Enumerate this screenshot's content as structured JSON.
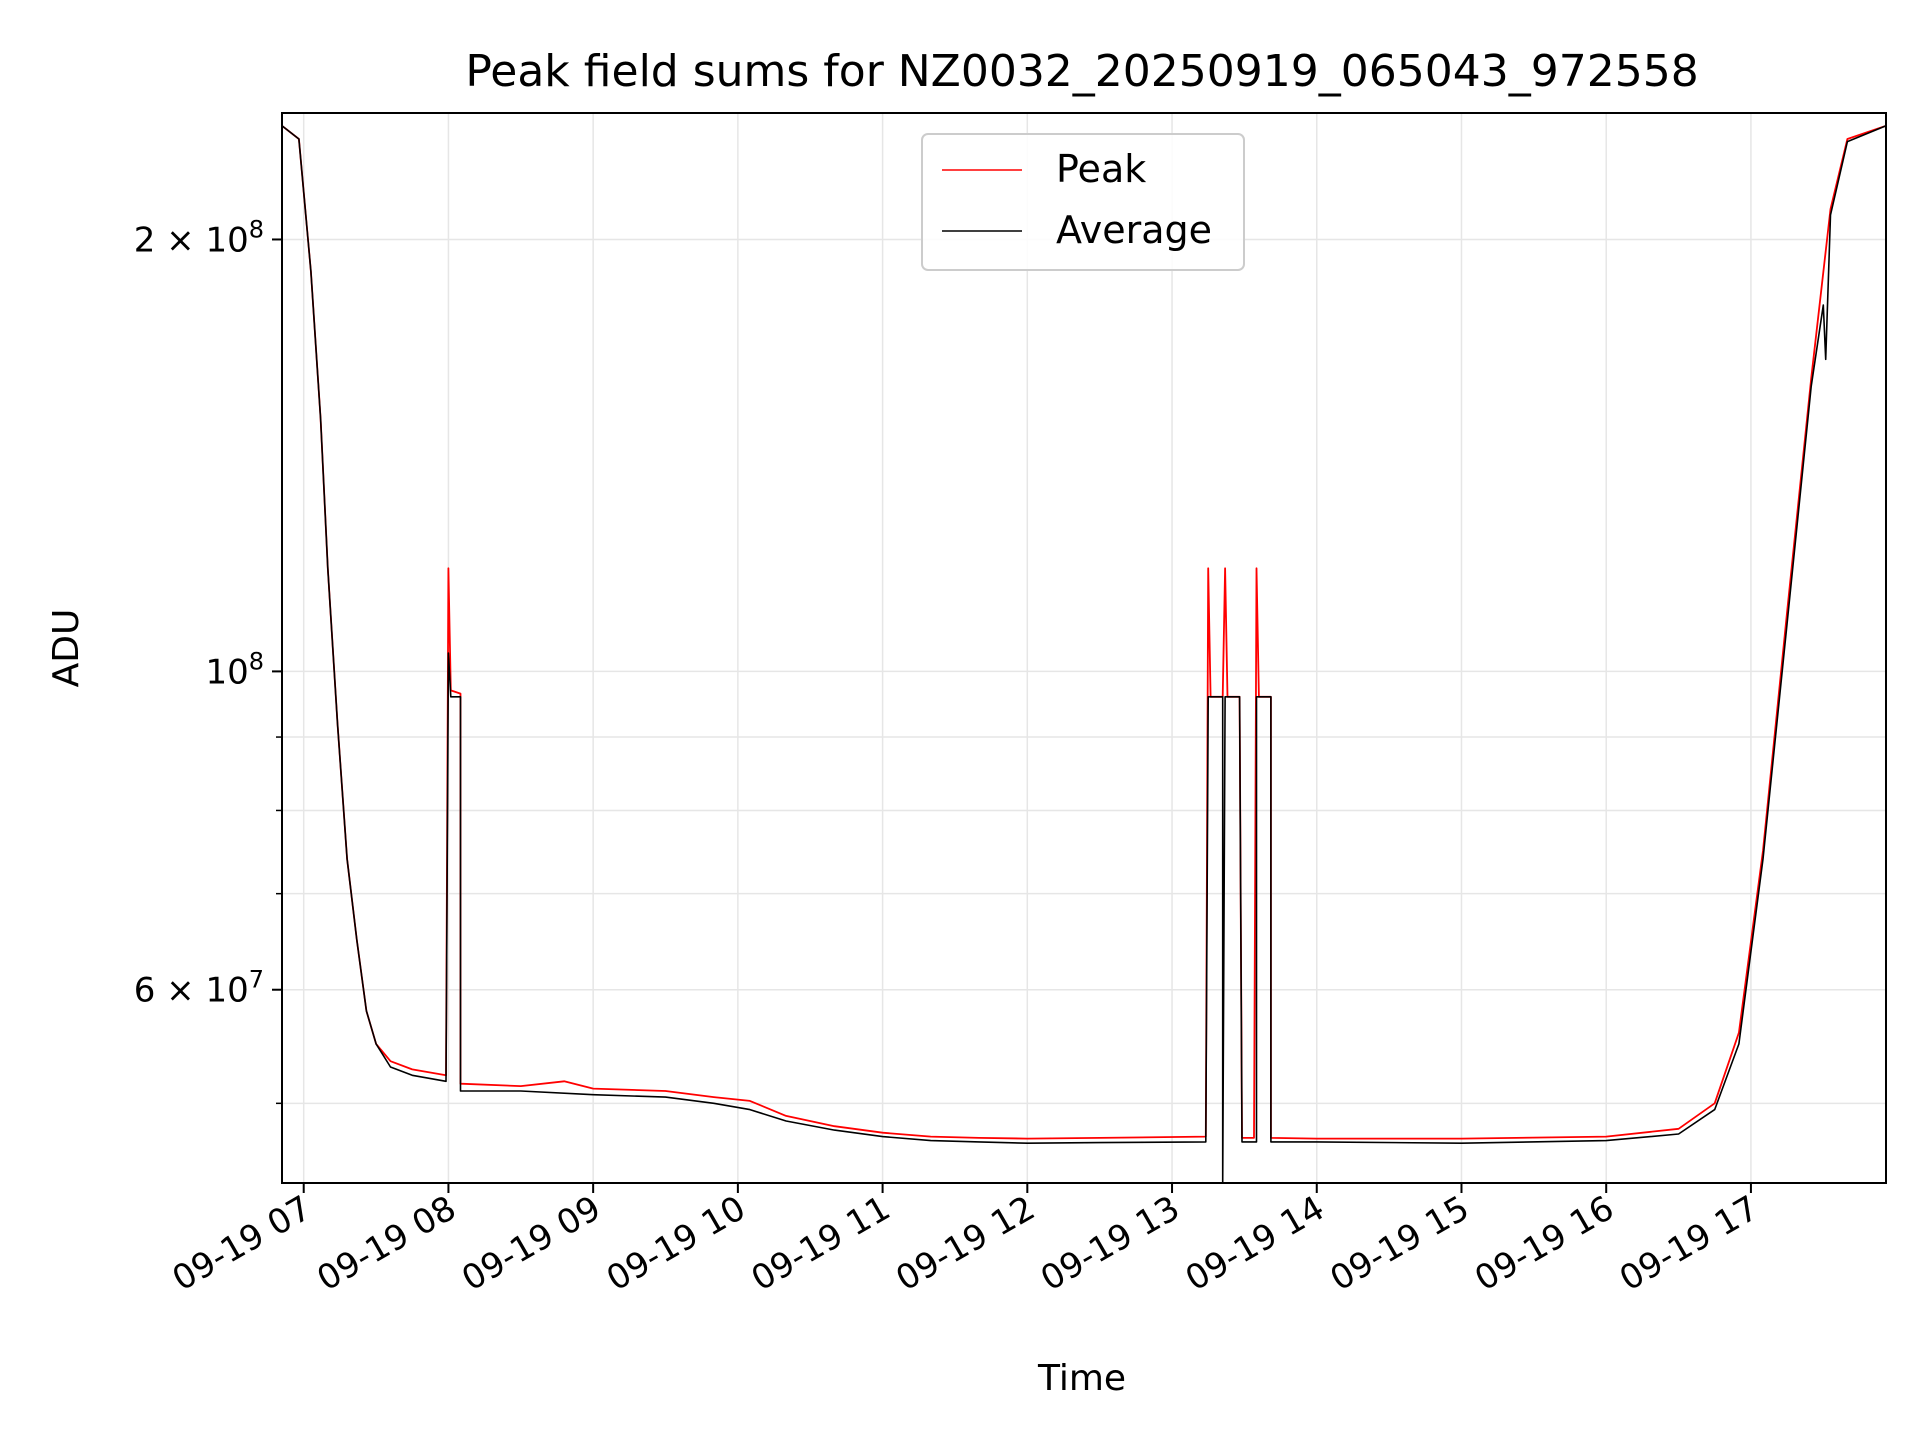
{
  "chart_data": {
    "type": "line",
    "title": "Peak field sums for NZ0032_20250919_065043_972558",
    "xlabel": "Time",
    "ylabel": "ADU",
    "yscale": "log",
    "ylim": [
      44000000,
      245000000
    ],
    "xlim": [
      "2025-09-19 06:51",
      "2025-09-19 17:56"
    ],
    "grid": true,
    "legend": "upper center",
    "x_ticks": [
      {
        "t": "2025-09-19 07:00",
        "label": "09-19 07"
      },
      {
        "t": "2025-09-19 08:00",
        "label": "09-19 08"
      },
      {
        "t": "2025-09-19 09:00",
        "label": "09-19 09"
      },
      {
        "t": "2025-09-19 10:00",
        "label": "09-19 10"
      },
      {
        "t": "2025-09-19 11:00",
        "label": "09-19 11"
      },
      {
        "t": "2025-09-19 12:00",
        "label": "09-19 12"
      },
      {
        "t": "2025-09-19 13:00",
        "label": "09-19 13"
      },
      {
        "t": "2025-09-19 14:00",
        "label": "09-19 14"
      },
      {
        "t": "2025-09-19 15:00",
        "label": "09-19 15"
      },
      {
        "t": "2025-09-19 16:00",
        "label": "09-19 16"
      },
      {
        "t": "2025-09-19 17:00",
        "label": "09-19 17"
      }
    ],
    "y_major_ticks": [
      {
        "value": 200000000,
        "mant": "2",
        "exp": "8"
      },
      {
        "value": 100000000,
        "mant": "",
        "exp": "8"
      },
      {
        "value": 60000000,
        "mant": "6",
        "exp": "7"
      }
    ],
    "y_minor_ticks": [
      50000000,
      70000000,
      80000000,
      90000000
    ],
    "series": [
      {
        "name": "Peak",
        "color": "#ff0000",
        "points": [
          [
            "2025-09-19 06:51",
            240000000
          ],
          [
            "2025-09-19 06:58",
            235000000
          ],
          [
            "2025-09-19 07:03",
            190000000
          ],
          [
            "2025-09-19 07:07",
            150000000
          ],
          [
            "2025-09-19 07:10",
            118000000
          ],
          [
            "2025-09-19 07:14",
            92000000
          ],
          [
            "2025-09-19 07:18",
            74000000
          ],
          [
            "2025-09-19 07:22",
            65000000
          ],
          [
            "2025-09-19 07:26",
            58000000
          ],
          [
            "2025-09-19 07:30",
            55000000
          ],
          [
            "2025-09-19 07:36",
            53500000
          ],
          [
            "2025-09-19 07:45",
            52800000
          ],
          [
            "2025-09-19 07:59",
            52300000
          ],
          [
            "2025-09-19 08:00",
            118000000
          ],
          [
            "2025-09-19 08:01",
            97000000
          ],
          [
            "2025-09-19 08:05",
            96500000
          ],
          [
            "2025-09-19 08:05",
            51600000
          ],
          [
            "2025-09-19 08:30",
            51400000
          ],
          [
            "2025-09-19 08:48",
            51800000
          ],
          [
            "2025-09-19 09:00",
            51200000
          ],
          [
            "2025-09-19 09:30",
            51000000
          ],
          [
            "2025-09-19 09:50",
            50500000
          ],
          [
            "2025-09-19 10:05",
            50200000
          ],
          [
            "2025-09-19 10:20",
            49000000
          ],
          [
            "2025-09-19 10:40",
            48200000
          ],
          [
            "2025-09-19 11:00",
            47700000
          ],
          [
            "2025-09-19 11:20",
            47400000
          ],
          [
            "2025-09-19 11:40",
            47300000
          ],
          [
            "2025-09-19 12:00",
            47250000
          ],
          [
            "2025-09-19 12:30",
            47300000
          ],
          [
            "2025-09-19 13:14",
            47400000
          ],
          [
            "2025-09-19 13:15",
            118000000
          ],
          [
            "2025-09-19 13:16",
            96000000
          ],
          [
            "2025-09-19 13:21",
            96000000
          ],
          [
            "2025-09-19 13:22",
            118000000
          ],
          [
            "2025-09-19 13:23",
            96000000
          ],
          [
            "2025-09-19 13:28",
            96000000
          ],
          [
            "2025-09-19 13:29",
            47300000
          ],
          [
            "2025-09-19 13:34",
            47300000
          ],
          [
            "2025-09-19 13:35",
            118000000
          ],
          [
            "2025-09-19 13:36",
            96000000
          ],
          [
            "2025-09-19 13:41",
            96000000
          ],
          [
            "2025-09-19 13:41",
            47300000
          ],
          [
            "2025-09-19 14:00",
            47250000
          ],
          [
            "2025-09-19 15:00",
            47250000
          ],
          [
            "2025-09-19 16:00",
            47400000
          ],
          [
            "2025-09-19 16:30",
            48000000
          ],
          [
            "2025-09-19 16:45",
            50000000
          ],
          [
            "2025-09-19 16:55",
            56000000
          ],
          [
            "2025-09-19 17:05",
            75000000
          ],
          [
            "2025-09-19 17:15",
            110000000
          ],
          [
            "2025-09-19 17:25",
            160000000
          ],
          [
            "2025-09-19 17:33",
            210000000
          ],
          [
            "2025-09-19 17:40",
            235000000
          ],
          [
            "2025-09-19 17:56",
            240000000
          ]
        ]
      },
      {
        "name": "Average",
        "color": "#000000",
        "points": [
          [
            "2025-09-19 06:51",
            240000000
          ],
          [
            "2025-09-19 06:58",
            235000000
          ],
          [
            "2025-09-19 07:03",
            190000000
          ],
          [
            "2025-09-19 07:07",
            150000000
          ],
          [
            "2025-09-19 07:10",
            118000000
          ],
          [
            "2025-09-19 07:14",
            92000000
          ],
          [
            "2025-09-19 07:18",
            74000000
          ],
          [
            "2025-09-19 07:22",
            65000000
          ],
          [
            "2025-09-19 07:26",
            58000000
          ],
          [
            "2025-09-19 07:30",
            55000000
          ],
          [
            "2025-09-19 07:36",
            53000000
          ],
          [
            "2025-09-19 07:45",
            52300000
          ],
          [
            "2025-09-19 07:59",
            51800000
          ],
          [
            "2025-09-19 08:00",
            103000000
          ],
          [
            "2025-09-19 08:01",
            96000000
          ],
          [
            "2025-09-19 08:05",
            96000000
          ],
          [
            "2025-09-19 08:05",
            51000000
          ],
          [
            "2025-09-19 08:30",
            51000000
          ],
          [
            "2025-09-19 09:00",
            50700000
          ],
          [
            "2025-09-19 09:30",
            50500000
          ],
          [
            "2025-09-19 09:50",
            50000000
          ],
          [
            "2025-09-19 10:05",
            49500000
          ],
          [
            "2025-09-19 10:20",
            48600000
          ],
          [
            "2025-09-19 10:40",
            47900000
          ],
          [
            "2025-09-19 11:00",
            47400000
          ],
          [
            "2025-09-19 11:20",
            47100000
          ],
          [
            "2025-09-19 11:40",
            47000000
          ],
          [
            "2025-09-19 12:00",
            46900000
          ],
          [
            "2025-09-19 12:30",
            46950000
          ],
          [
            "2025-09-19 13:14",
            47000000
          ],
          [
            "2025-09-19 13:15",
            96000000
          ],
          [
            "2025-09-19 13:21",
            96000000
          ],
          [
            "2025-09-19 13:21",
            44000000
          ],
          [
            "2025-09-19 13:22",
            96000000
          ],
          [
            "2025-09-19 13:28",
            96000000
          ],
          [
            "2025-09-19 13:29",
            47000000
          ],
          [
            "2025-09-19 13:35",
            47000000
          ],
          [
            "2025-09-19 13:35",
            96000000
          ],
          [
            "2025-09-19 13:41",
            96000000
          ],
          [
            "2025-09-19 13:41",
            47000000
          ],
          [
            "2025-09-19 14:00",
            47000000
          ],
          [
            "2025-09-19 15:00",
            46900000
          ],
          [
            "2025-09-19 16:00",
            47100000
          ],
          [
            "2025-09-19 16:30",
            47600000
          ],
          [
            "2025-09-19 16:45",
            49500000
          ],
          [
            "2025-09-19 16:55",
            55000000
          ],
          [
            "2025-09-19 17:05",
            74000000
          ],
          [
            "2025-09-19 17:15",
            108000000
          ],
          [
            "2025-09-19 17:25",
            158000000
          ],
          [
            "2025-09-19 17:30",
            180000000
          ],
          [
            "2025-09-19 17:31",
            165000000
          ],
          [
            "2025-09-19 17:33",
            208000000
          ],
          [
            "2025-09-19 17:40",
            234000000
          ],
          [
            "2025-09-19 17:56",
            240000000
          ]
        ]
      }
    ]
  }
}
